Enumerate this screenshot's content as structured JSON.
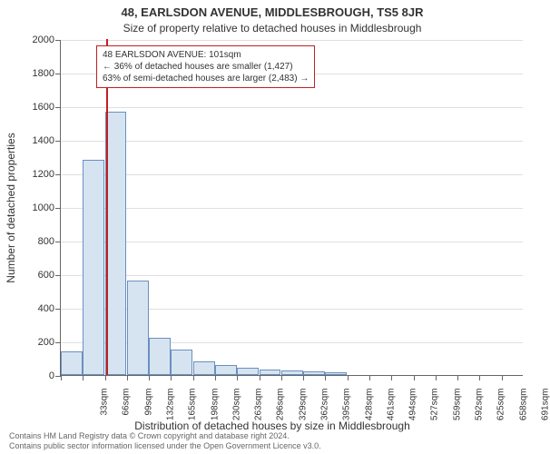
{
  "chart": {
    "type": "histogram",
    "title": "48, EARLSDON AVENUE, MIDDLESBROUGH, TS5 8JR",
    "subtitle": "Size of property relative to detached houses in Middlesbrough",
    "y_axis_title": "Number of detached properties",
    "x_axis_title": "Distribution of detached houses by size in Middlesbrough",
    "background_color": "#ffffff",
    "grid_color": "#e0e0e0",
    "axis_color": "#666666",
    "bar_fill": "#d6e4f2",
    "bar_border": "#6a8fc0",
    "marker_color": "#c02020",
    "ylim": [
      0,
      2000
    ],
    "ytick_step": 200,
    "x_categories": [
      "33sqm",
      "66sqm",
      "99sqm",
      "132sqm",
      "165sqm",
      "198sqm",
      "230sqm",
      "263sqm",
      "296sqm",
      "329sqm",
      "362sqm",
      "395sqm",
      "428sqm",
      "461sqm",
      "494sqm",
      "527sqm",
      "559sqm",
      "592sqm",
      "625sqm",
      "658sqm",
      "691sqm"
    ],
    "bar_values": [
      140,
      1280,
      1570,
      560,
      220,
      150,
      80,
      60,
      45,
      30,
      25,
      20,
      15,
      0,
      0,
      0,
      0,
      0,
      0,
      0,
      0
    ],
    "marker_value_sqm": 101,
    "annotation": {
      "lines": [
        "48 EARLSDON AVENUE: 101sqm",
        "← 36% of detached houses are smaller (1,427)",
        "63% of semi-detached houses are larger (2,483) →"
      ]
    },
    "footer_lines": [
      "Contains HM Land Registry data © Crown copyright and database right 2024.",
      "Contains public sector information licensed under the Open Government Licence v3.0."
    ],
    "title_fontsize": 13,
    "subtitle_fontsize": 12,
    "axis_label_fontsize": 11,
    "tick_fontsize": 10,
    "annotation_fontsize": 10,
    "footer_fontsize": 9
  }
}
